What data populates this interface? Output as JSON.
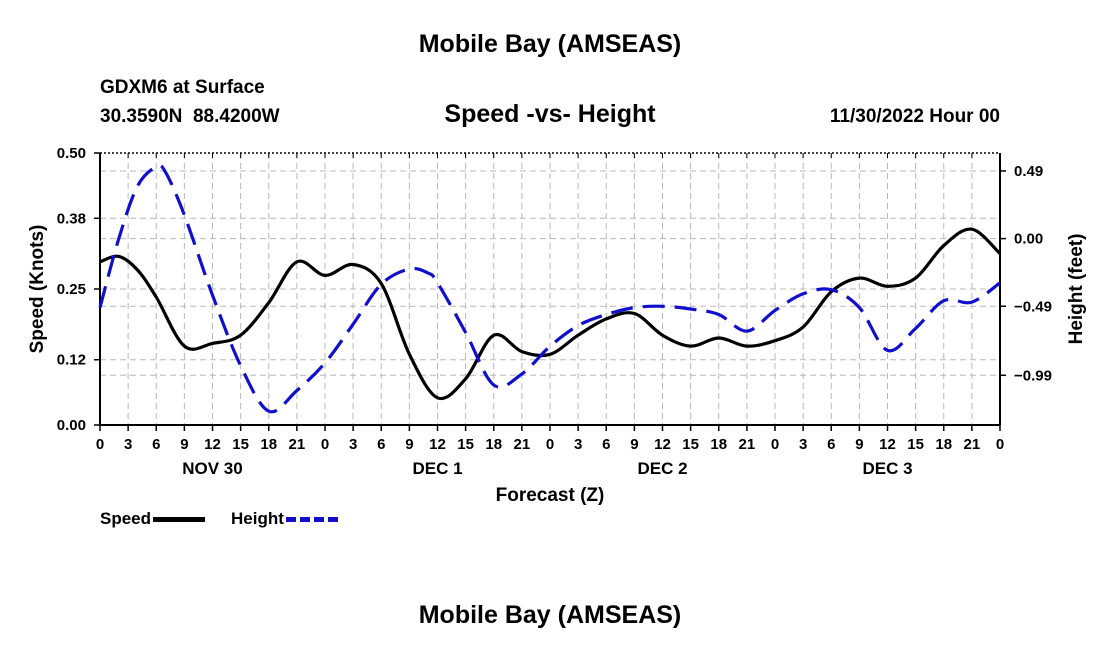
{
  "header": {
    "title": "Mobile Bay (AMSEAS)",
    "station": "GDXM6 at Surface",
    "coords": "30.3590N  88.4200W",
    "subtitle": "Speed -vs- Height",
    "run": "11/30/2022 Hour 00"
  },
  "footer": {
    "title": "Mobile Bay (AMSEAS)"
  },
  "legend": {
    "speed": "Speed",
    "height": "Height"
  },
  "colors": {
    "speed": "#000000",
    "height": "#1010cc",
    "grid": "#b8b8b8"
  },
  "chart_data": {
    "type": "line",
    "title": "Speed -vs- Height",
    "xlabel": "Forecast (Z)",
    "ylabel_left": "Speed (Knots)",
    "ylabel_right": "Height (feet)",
    "x_range_hours": [
      0,
      96
    ],
    "x_tick_labels": [
      "0",
      "3",
      "6",
      "9",
      "12",
      "15",
      "18",
      "21",
      "0",
      "3",
      "6",
      "9",
      "12",
      "15",
      "18",
      "21",
      "0",
      "3",
      "6",
      "9",
      "12",
      "15",
      "18",
      "21",
      "0",
      "3",
      "6",
      "9",
      "12",
      "15",
      "18",
      "21",
      "0"
    ],
    "day_labels": [
      {
        "label": "NOV 30",
        "hour": 12
      },
      {
        "label": "DEC 1",
        "hour": 36
      },
      {
        "label": "DEC 2",
        "hour": 60
      },
      {
        "label": "DEC 3",
        "hour": 84
      }
    ],
    "left_axis": {
      "ylim": [
        0.0,
        0.5
      ],
      "ticks": [
        0.0,
        0.12,
        0.25,
        0.38,
        0.5
      ],
      "tick_labels": [
        "0.00",
        "0.12",
        "0.25",
        "0.38",
        "0.50"
      ]
    },
    "right_axis": {
      "ylim": [
        -1.35,
        0.62
      ],
      "ticks": [
        0.49,
        0.0,
        -0.49,
        -0.99
      ],
      "tick_labels": [
        "0.49",
        "0.00",
        "−0.49",
        "−0.99"
      ]
    },
    "grid": true,
    "series": [
      {
        "name": "Speed",
        "axis": "left",
        "style": "solid",
        "x": [
          0,
          2,
          4,
          6,
          9,
          12,
          15,
          18,
          21,
          24,
          27,
          30,
          33,
          36,
          39,
          42,
          45,
          48,
          51,
          54,
          57,
          60,
          63,
          66,
          69,
          72,
          75,
          78,
          81,
          84,
          87,
          90,
          93,
          96
        ],
        "values": [
          0.3,
          0.31,
          0.285,
          0.235,
          0.145,
          0.15,
          0.165,
          0.225,
          0.3,
          0.275,
          0.295,
          0.26,
          0.13,
          0.05,
          0.085,
          0.165,
          0.135,
          0.13,
          0.165,
          0.195,
          0.205,
          0.165,
          0.145,
          0.16,
          0.145,
          0.155,
          0.18,
          0.245,
          0.27,
          0.255,
          0.27,
          0.33,
          0.36,
          0.315
        ]
      },
      {
        "name": "Height",
        "axis": "right",
        "style": "dashed",
        "x": [
          0,
          2,
          4,
          6,
          7,
          9,
          12,
          15,
          18,
          21,
          24,
          27,
          30,
          33,
          35,
          36,
          39,
          42,
          45,
          48,
          51,
          54,
          57,
          60,
          63,
          66,
          69,
          72,
          75,
          78,
          81,
          84,
          87,
          90,
          93,
          96
        ],
        "values": [
          -0.5,
          0.0,
          0.38,
          0.52,
          0.48,
          0.17,
          -0.41,
          -0.92,
          -1.25,
          -1.1,
          -0.9,
          -0.62,
          -0.33,
          -0.22,
          -0.25,
          -0.32,
          -0.68,
          -1.06,
          -0.98,
          -0.78,
          -0.63,
          -0.55,
          -0.5,
          -0.49,
          -0.51,
          -0.55,
          -0.67,
          -0.52,
          -0.4,
          -0.37,
          -0.5,
          -0.81,
          -0.65,
          -0.45,
          -0.46,
          -0.32
        ]
      }
    ]
  }
}
